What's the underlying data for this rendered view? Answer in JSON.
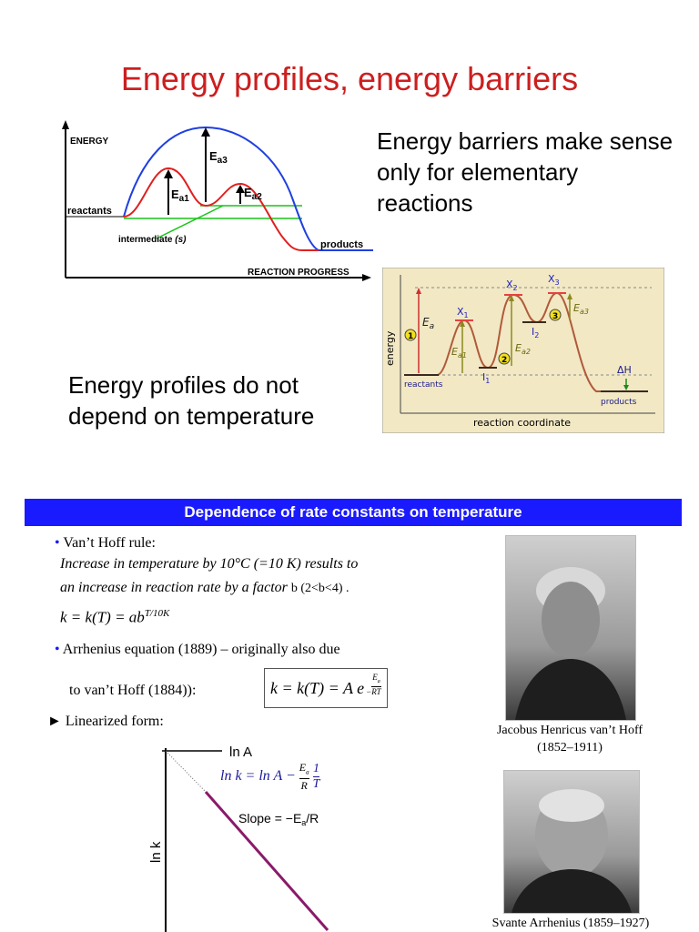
{
  "title": "Energy profiles, energy barriers",
  "barrier_text": "Energy barriers make sense only for elementary reactions",
  "temp_text": "Energy profiles do not depend on temperature",
  "diagram1": {
    "y_axis": "ENERGY",
    "x_axis": "REACTION PROGRESS",
    "reactants": "reactants",
    "products": "products",
    "intermediate": "intermediate",
    "intermediate_s": "(s)",
    "ea1": "E",
    "ea1_sub": "a1",
    "ea2": "E",
    "ea2_sub": "a2",
    "ea3": "E",
    "ea3_sub": "a3",
    "colors": {
      "blue": "#1f3fe0",
      "red": "#e02020",
      "green": "#19c419"
    }
  },
  "diagram2": {
    "y_axis": "energy",
    "x_axis": "reaction coordinate",
    "reactants": "reactants",
    "products": "products",
    "ea": "E",
    "ea_sub": "a",
    "ea1": "E",
    "ea1_sub": "a1",
    "ea2": "E",
    "ea2_sub": "a2",
    "ea3": "E",
    "ea3_sub": "a3",
    "x1": "X",
    "x1_sub": "1",
    "x2": "X",
    "x2_sub": "2",
    "x3": "X",
    "x3_sub": "3",
    "i1": "I",
    "i1_sub": "1",
    "i2": "I",
    "i2_sub": "2",
    "dh": "ΔH",
    "n1": "1",
    "n2": "2",
    "n3": "3",
    "colors": {
      "background": "#f2e8c4",
      "curve": "#b05a3a"
    }
  },
  "banner": "Dependence of rate constants on temperature",
  "vanthoff": {
    "bullet": "•",
    "rule": "Van’t Hoff rule:",
    "line1": "Increase in temperature by 10°C (=10 K) results to",
    "line2a": "an increase in reaction rate by a factor",
    "line2b": "b (2<b<4) .",
    "formula_lhs": "k = k(T) = ab",
    "formula_exp": "T/10K"
  },
  "arrhenius": {
    "bullet": "•",
    "line1": "Arrhenius equation (1889) – originally also due",
    "line2": "to van’t Hoff (1884)):",
    "formula_lhs": "k = k(T) = A e",
    "exp_num": "E",
    "exp_num_sub": "a",
    "exp_den": "RT"
  },
  "linearized": {
    "arrow": "►",
    "label": "Linearized form:",
    "ln_a": "ln A",
    "ln_k": "ln k",
    "eq_lhs": "ln k = ln A −",
    "eq_frac_num": "E",
    "eq_frac_num_sub": "a",
    "eq_frac_den": "R",
    "eq_inv_num": "1",
    "eq_inv_den": "T",
    "slope": "Slope = −E",
    "slope_sub": "a",
    "slope_end": "/R"
  },
  "portrait1": {
    "caption1": "Jacobus Henricus van’t Hoff",
    "caption2": "(1852–1911)"
  },
  "portrait2": {
    "caption": "Svante Arrhenius (1859–1927)"
  }
}
